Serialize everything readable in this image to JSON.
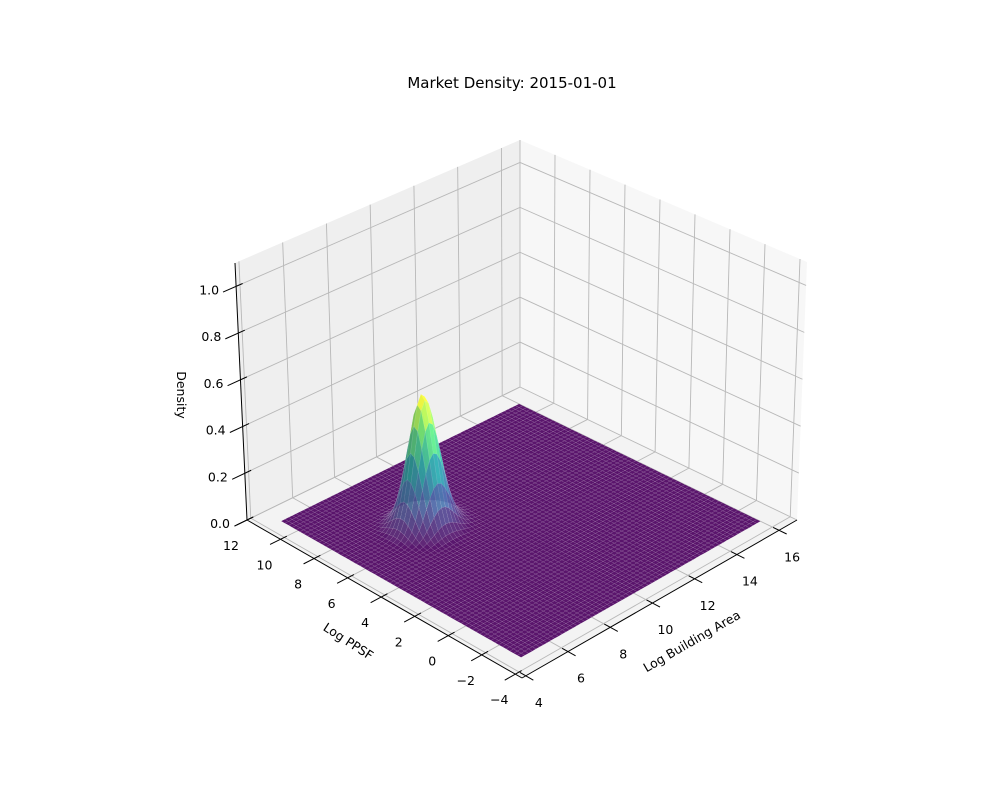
{
  "chart_data": {
    "type": "surface",
    "title": "Market Density: 2015-01-01",
    "xlabel": "Log Building Area",
    "ylabel": "Log PPSF",
    "zlabel": "Density",
    "xlim": [
      3.82,
      16.85
    ],
    "ylim": [
      -4.4,
      12.0
    ],
    "zlim": [
      0,
      1.1
    ],
    "x_ticks": [
      4,
      6,
      8,
      10,
      12,
      14,
      16
    ],
    "x_tick_labels": [
      "4",
      "6",
      "8",
      "10",
      "12",
      "14",
      "16"
    ],
    "y_ticks": [
      -4,
      -2,
      0,
      2,
      4,
      6,
      8,
      10,
      12
    ],
    "y_tick_labels": [
      "−4",
      "−2",
      "0",
      "2",
      "4",
      "6",
      "8",
      "10",
      "12"
    ],
    "z_ticks": [
      0,
      0.2,
      0.4,
      0.6,
      0.8,
      1.0
    ],
    "z_tick_labels": [
      "0.0",
      "0.2",
      "0.4",
      "0.6",
      "0.8",
      "1.0"
    ],
    "grid": true,
    "colormap": "viridis",
    "surface": {
      "x_range": [
        4.65,
        16.0
      ],
      "y_range": [
        -3.3,
        11.0
      ],
      "resolution": 64,
      "peaks": [
        {
          "x": 8.05,
          "y": 6.7,
          "height": 0.56,
          "sigma_x": 0.55,
          "sigma_y": 0.6
        }
      ]
    }
  }
}
